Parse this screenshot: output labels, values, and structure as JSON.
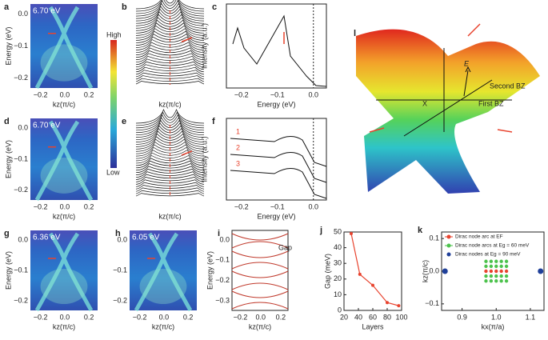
{
  "panels": [
    {
      "letter": "a",
      "energy": "6.70 eV",
      "yticks": [
        "0.0",
        "−0.1",
        "−0.2"
      ],
      "xticks": [
        "−0.2",
        "0.0",
        "0.2"
      ],
      "ylabel": "Energy (eV)",
      "xlabel": "kz(π/c)"
    },
    {
      "letter": "b",
      "xlabel": "kz(π/c)"
    },
    {
      "letter": "c",
      "xticks": [
        "−0.2",
        "−0.1",
        "0.0"
      ],
      "ylabel": "Intensity (a.u.)",
      "xlabel": "Energy (eV)"
    },
    {
      "letter": "d",
      "energy": "6.70 eV",
      "yticks": [
        "0.0",
        "−0.1",
        "−0.2"
      ],
      "xticks": [
        "−0.2",
        "0.0",
        "0.2"
      ],
      "ylabel": "Energy (eV)",
      "xlabel": "kz(π/c)"
    },
    {
      "letter": "e",
      "xlabel": "kz(π/c)"
    },
    {
      "letter": "f",
      "xticks": [
        "−0.2",
        "−0.1",
        "0.0"
      ],
      "ylabel": "Intensity (a.u.)",
      "xlabel": "Energy (eV)",
      "curves": [
        "1",
        "2",
        "3"
      ]
    },
    {
      "letter": "g",
      "energy": "6.36 eV",
      "yticks": [
        "0.0",
        "−0.1",
        "−0.2"
      ],
      "xticks": [
        "−0.2",
        "0.0",
        "0.2"
      ],
      "ylabel": "Energy (eV)",
      "xlabel": "kz(π/c)"
    },
    {
      "letter": "h",
      "energy": "6.05 eV",
      "yticks": [
        "0.0",
        "−0.1",
        "−0.2"
      ],
      "xticks": [
        "−0.2",
        "0.0",
        "0.2"
      ],
      "xlabel": "kz(π/c)"
    },
    {
      "letter": "i",
      "yticks": [
        "0.0",
        "−0.1",
        "−0.2",
        "−0.3"
      ],
      "xticks": [
        "−0.2",
        "0.0",
        "0.2"
      ],
      "ylabel": "Energy (eV)",
      "xlabel": "kz(π/c)",
      "annotation": "Gap"
    }
  ],
  "colorbar": {
    "high": "High",
    "low": "Low"
  },
  "panel_l": {
    "letter": "l",
    "axis": "E",
    "second": "Second BZ",
    "first": "First BZ",
    "point": "X"
  },
  "chart_data": [
    {
      "type": "line",
      "letter": "j",
      "x": [
        30,
        42,
        60,
        80,
        96
      ],
      "values": [
        49,
        23,
        16,
        5,
        3
      ],
      "color": "#e8432e",
      "xlim": [
        20,
        100
      ],
      "xticks": [
        20,
        40,
        60,
        80,
        100
      ],
      "ylim": [
        0,
        50
      ],
      "yticks": [
        0,
        10,
        20,
        30,
        40,
        50
      ],
      "xlabel": "Layers",
      "ylabel": "Gap (meV)"
    },
    {
      "type": "scatter",
      "letter": "k",
      "xlabel": "kx(π/a)",
      "ylabel": "kz(π/c)",
      "xlim": [
        0.84,
        1.14
      ],
      "xticks": [
        0.9,
        {
          "value": 1,
          "label": "1.0"
        },
        1.1
      ],
      "ylim": [
        -0.12,
        0.12
      ],
      "yticks": [
        0.1,
        {
          "value": 0,
          "label": "0.0"
        },
        {
          "value": -0.1,
          "label": "−0.1"
        }
      ],
      "series": [
        {
          "name": "Dirac node arc at EF",
          "color": "#e8432e",
          "line": true,
          "x": [
            0.97,
            0.985,
            1.0,
            1.015,
            1.03
          ],
          "values": [
            0,
            0,
            0,
            0,
            0
          ]
        },
        {
          "name": "Dirac node arcs at Eg = 60 meV",
          "color": "#4cc24c",
          "line": true,
          "x": [
            0.97,
            0.985,
            1.0,
            1.015,
            1.03,
            0.97,
            0.985,
            1.0,
            1.015,
            1.03,
            0.97,
            0.985,
            1.0,
            1.015,
            1.03,
            0.97,
            0.985,
            1.0,
            1.015,
            1.03
          ],
          "values": [
            0.03,
            0.03,
            0.03,
            0.03,
            0.03,
            0.015,
            0.015,
            0.015,
            0.015,
            0.015,
            -0.015,
            -0.015,
            -0.015,
            -0.015,
            -0.015,
            -0.03,
            -0.03,
            -0.03,
            -0.03,
            -0.03
          ]
        },
        {
          "name": "Dirac nodes at Eg = 90 meV",
          "color": "#1f3f99",
          "line": false,
          "x": [
            0.85,
            1.13
          ],
          "values": [
            0,
            0
          ]
        }
      ]
    }
  ]
}
